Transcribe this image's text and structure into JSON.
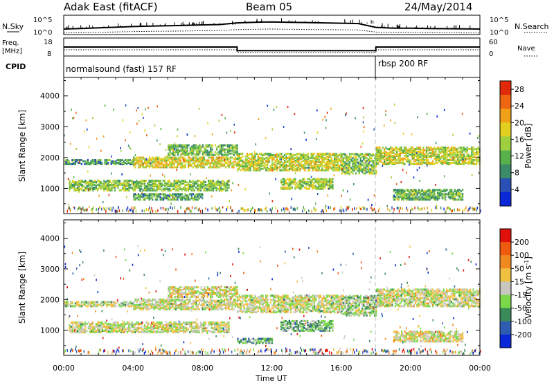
{
  "header": {
    "station": "Adak East (fitACF)",
    "beam": "Beam 05",
    "date": "24/May/2014"
  },
  "chart_data": [
    {
      "type": "line",
      "id": "nsky-nsearch",
      "left_label": "N.Sky",
      "right_label": "N.Search",
      "left_ticks": [
        "10^5",
        "10^0"
      ],
      "right_ticks": [
        "10^5",
        "10^0"
      ],
      "noise_level_series": [
        {
          "x": 0,
          "v": 0.25
        },
        {
          "x": 1,
          "v": 0.28
        },
        {
          "x": 2,
          "v": 0.32
        },
        {
          "x": 3,
          "v": 0.36
        },
        {
          "x": 4,
          "v": 0.4
        },
        {
          "x": 5,
          "v": 0.43
        },
        {
          "x": 6,
          "v": 0.45
        },
        {
          "x": 7,
          "v": 0.47
        },
        {
          "x": 8,
          "v": 0.5
        },
        {
          "x": 9,
          "v": 0.52
        },
        {
          "x": 10,
          "v": 0.62
        },
        {
          "x": 11,
          "v": 0.66
        },
        {
          "x": 12,
          "v": 0.68
        },
        {
          "x": 13,
          "v": 0.66
        },
        {
          "x": 14,
          "v": 0.64
        },
        {
          "x": 15,
          "v": 0.62
        },
        {
          "x": 16,
          "v": 0.6
        },
        {
          "x": 17,
          "v": 0.58
        },
        {
          "x": 18,
          "v": 0.35
        },
        {
          "x": 19,
          "v": 0.3
        },
        {
          "x": 20,
          "v": 0.3
        },
        {
          "x": 21,
          "v": 0.28
        },
        {
          "x": 22,
          "v": 0.27
        },
        {
          "x": 23,
          "v": 0.26
        },
        {
          "x": 24,
          "v": 0.25
        }
      ]
    },
    {
      "type": "line",
      "id": "freq-nave",
      "left_label_lines": [
        "Freq.",
        "[MHz]"
      ],
      "right_label": "Nave",
      "left_ticks": [
        "18",
        "8"
      ],
      "right_ticks": [
        "60",
        "0"
      ],
      "freq_mhz_steps": [
        {
          "x_start": 0,
          "x_end": 10,
          "value": 13
        },
        {
          "x_start": 10,
          "x_end": 18,
          "value": 10.8
        },
        {
          "x_start": 18,
          "x_end": 24,
          "value": 13
        }
      ],
      "nave_steps": [
        {
          "x_start": 0,
          "x_end": 10,
          "value": 20
        },
        {
          "x_start": 10,
          "x_end": 18,
          "value": 10
        },
        {
          "x_start": 18,
          "x_end": 24,
          "value": 20
        }
      ]
    },
    {
      "type": "table",
      "id": "cpid",
      "label": "CPID",
      "segments": [
        {
          "x_start": 0,
          "x_end": 18,
          "text": "normalsound (fast) 157 RF"
        },
        {
          "x_start": 18,
          "x_end": 24,
          "text": "rbsp 200 RF"
        }
      ]
    },
    {
      "type": "heatmap",
      "id": "power",
      "ylabel": "Slant Range [km]",
      "ylim": [
        180,
        4600
      ],
      "yticks": [
        "1000",
        "2000",
        "3000",
        "4000"
      ],
      "colorbar_label": "Power [dB]",
      "colorbar_ticks": [
        "4",
        "8",
        "12",
        "16",
        "20",
        "24",
        "28"
      ],
      "colorbar_range": [
        0,
        30
      ],
      "colors": [
        "#0b28d8",
        "#2a4fb5",
        "#3c8c6a",
        "#58b04a",
        "#9ed040",
        "#e4d020",
        "#f0a018",
        "#ee6612",
        "#e02a0a"
      ],
      "echo_bands": [
        {
          "t0": 0,
          "t1": 4,
          "r0": 1750,
          "r1": 1900,
          "level": 0.35
        },
        {
          "t0": 0.3,
          "t1": 9.5,
          "r0": 900,
          "r1": 1250,
          "level": 0.45
        },
        {
          "t0": 4,
          "t1": 10,
          "r0": 1650,
          "r1": 2000,
          "level": 0.6
        },
        {
          "t0": 6,
          "t1": 10,
          "r0": 2050,
          "r1": 2400,
          "level": 0.4
        },
        {
          "t0": 10,
          "t1": 16,
          "r0": 1550,
          "r1": 2100,
          "level": 0.55
        },
        {
          "t0": 12.5,
          "t1": 15.5,
          "r0": 950,
          "r1": 1300,
          "level": 0.5
        },
        {
          "t0": 16,
          "t1": 18,
          "r0": 1450,
          "r1": 2100,
          "level": 0.45
        },
        {
          "t0": 18,
          "t1": 24,
          "r0": 1750,
          "r1": 2300,
          "level": 0.55
        },
        {
          "t0": 19,
          "t1": 23,
          "r0": 600,
          "r1": 950,
          "level": 0.4
        },
        {
          "t0": 4,
          "t1": 8,
          "r0": 600,
          "r1": 800,
          "level": 0.35
        }
      ]
    },
    {
      "type": "heatmap",
      "id": "velocity",
      "xlabel": "Time UT",
      "ylabel": "Slant Range [km]",
      "ylim": [
        180,
        4600
      ],
      "yticks": [
        "1000",
        "2000",
        "3000",
        "4000"
      ],
      "xticks": [
        "00:00",
        "04:00",
        "08:00",
        "12:00",
        "16:00",
        "20:00",
        "00:00"
      ],
      "xlim_hours": [
        0,
        24
      ],
      "colorbar_label": "Velocity [m s^-1]",
      "colorbar_ticks": [
        "200",
        "100",
        "50",
        "15",
        "-15",
        "-50",
        "-100",
        "-200"
      ],
      "colors": [
        "#0b28d8",
        "#2e5cb0",
        "#3b8a5a",
        "#7bd84a",
        "#c8c8c0",
        "#f0c040",
        "#f08a20",
        "#ee5a10",
        "#e0100a"
      ],
      "echo_bands": [
        {
          "t0": 0,
          "t1": 4,
          "r0": 1750,
          "r1": 1900,
          "level": 0.48
        },
        {
          "t0": 0.3,
          "t1": 9.5,
          "r0": 900,
          "r1": 1250,
          "level": 0.5
        },
        {
          "t0": 4,
          "t1": 10,
          "r0": 1650,
          "r1": 2000,
          "level": 0.5
        },
        {
          "t0": 6,
          "t1": 10,
          "r0": 2050,
          "r1": 2400,
          "level": 0.52
        },
        {
          "t0": 10,
          "t1": 16,
          "r0": 1550,
          "r1": 2100,
          "level": 0.5
        },
        {
          "t0": 12.5,
          "t1": 15.5,
          "r0": 950,
          "r1": 1300,
          "level": 0.36
        },
        {
          "t0": 16,
          "t1": 18,
          "r0": 1450,
          "r1": 2100,
          "level": 0.42
        },
        {
          "t0": 18,
          "t1": 24,
          "r0": 1750,
          "r1": 2300,
          "level": 0.5
        },
        {
          "t0": 19,
          "t1": 23,
          "r0": 600,
          "r1": 950,
          "level": 0.54
        },
        {
          "t0": 10,
          "t1": 12,
          "r0": 550,
          "r1": 700,
          "level": 0.36
        }
      ]
    }
  ],
  "text": {
    "power_colorbar_label": "Power [dB]",
    "velocity_colorbar_label": "Velocity [m s",
    "velocity_colorbar_sup": "-1",
    "velocity_colorbar_tail": "]",
    "time_axis_label": "Time UT",
    "nsky": "N.Sky",
    "nsearch": "N.Search",
    "freq1": "Freq.",
    "freq2": "[MHz]",
    "nave": "Nave",
    "cpid": "CPID",
    "slant1": "Slant Range [km]",
    "slant2": "Slant Range [km]"
  }
}
